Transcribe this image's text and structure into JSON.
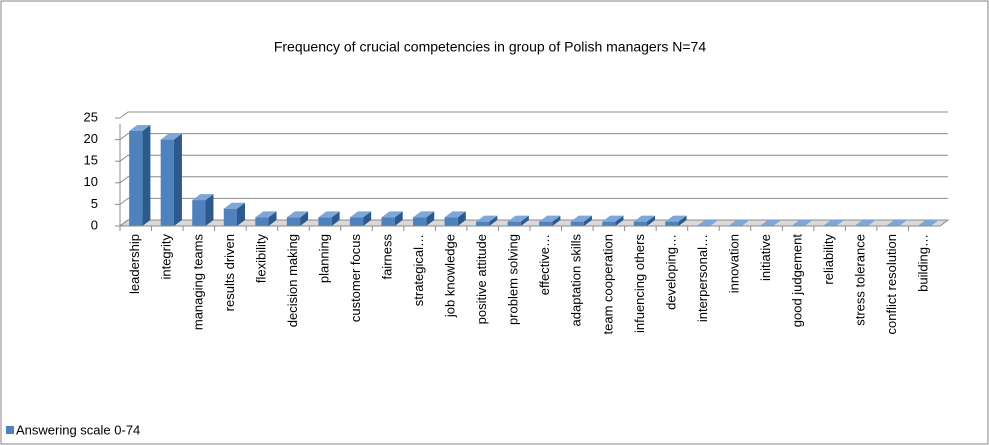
{
  "chart_data": {
    "type": "bar3d",
    "title": "Frequency of crucial competencies in group of Polish managers N=74",
    "categories": [
      "leadership",
      "integrity",
      "managing teams",
      "results driven",
      "flexibility",
      "decision making",
      "planning",
      "customer focus",
      "fairness",
      "strategical…",
      "job knowledge",
      "positive attitude",
      "problem solving",
      "effective…",
      "adaptation skills",
      "team cooperation",
      "infuencing others",
      "developing…",
      "interpersonal…",
      "innovation",
      "initiative",
      "good judgement",
      "reliability",
      "stress tolerance",
      "conflict resolution",
      "building…"
    ],
    "series": [
      {
        "name": "Answering scale 0-74",
        "color": "#4f81bd",
        "values": [
          22,
          20,
          6,
          4,
          2,
          2,
          2,
          2,
          2,
          2,
          2,
          1,
          1,
          1,
          1,
          1,
          1,
          1,
          0,
          0,
          0,
          0,
          0,
          0,
          0,
          0
        ]
      }
    ],
    "ylim": [
      0,
      25
    ],
    "yticks": [
      0,
      5,
      10,
      15,
      20,
      25
    ],
    "grid": true,
    "legend": "bottom-left"
  }
}
